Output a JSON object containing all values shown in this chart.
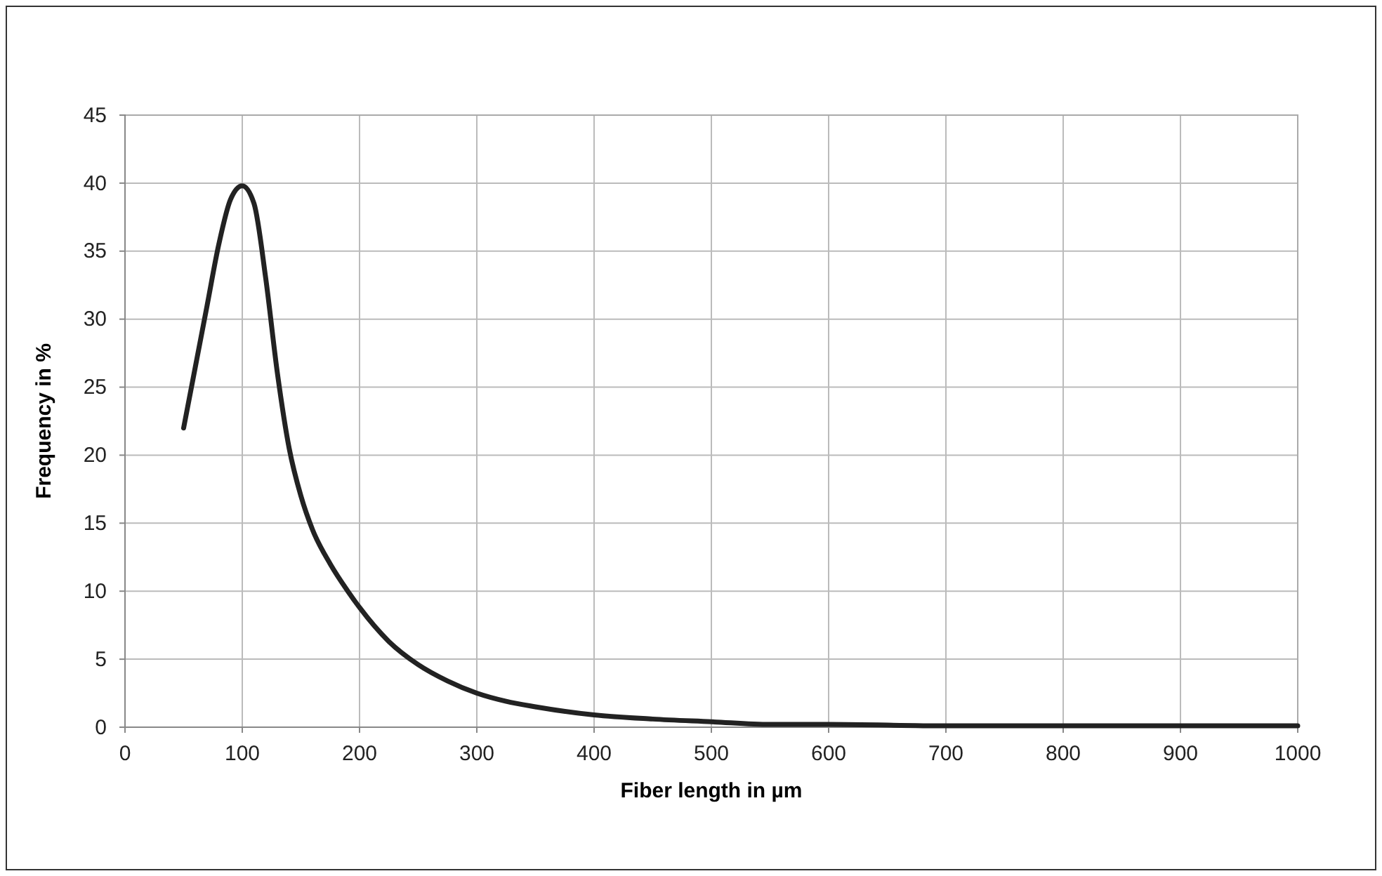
{
  "chart_data": {
    "type": "line",
    "xlabel": "Fiber length in µm",
    "ylabel": "Frequency in %",
    "x": [
      50,
      60,
      70,
      80,
      90,
      100,
      110,
      120,
      130,
      140,
      150,
      160,
      175,
      190,
      200,
      225,
      250,
      275,
      300,
      325,
      350,
      400,
      450,
      500,
      550,
      600,
      700,
      800,
      900,
      1000
    ],
    "series": [
      {
        "color": "#222222",
        "values": [
          22,
          26.5,
          31,
          35.5,
          38.8,
          39.8,
          38.5,
          33,
          26,
          20.5,
          17,
          14.5,
          12,
          10,
          8.8,
          6.3,
          4.6,
          3.4,
          2.5,
          1.9,
          1.5,
          0.9,
          0.6,
          0.4,
          0.2,
          0.2,
          0.1,
          0.1,
          0.1,
          0.1
        ]
      }
    ],
    "xlim": [
      0,
      1000
    ],
    "xticks": [
      0,
      100,
      200,
      300,
      400,
      500,
      600,
      700,
      800,
      900,
      1000
    ],
    "ylim": [
      0,
      45
    ],
    "yticks": [
      0,
      5,
      10,
      15,
      20,
      25,
      30,
      35,
      40,
      45
    ],
    "grid": true,
    "marker": "none",
    "line_style": "solid"
  }
}
